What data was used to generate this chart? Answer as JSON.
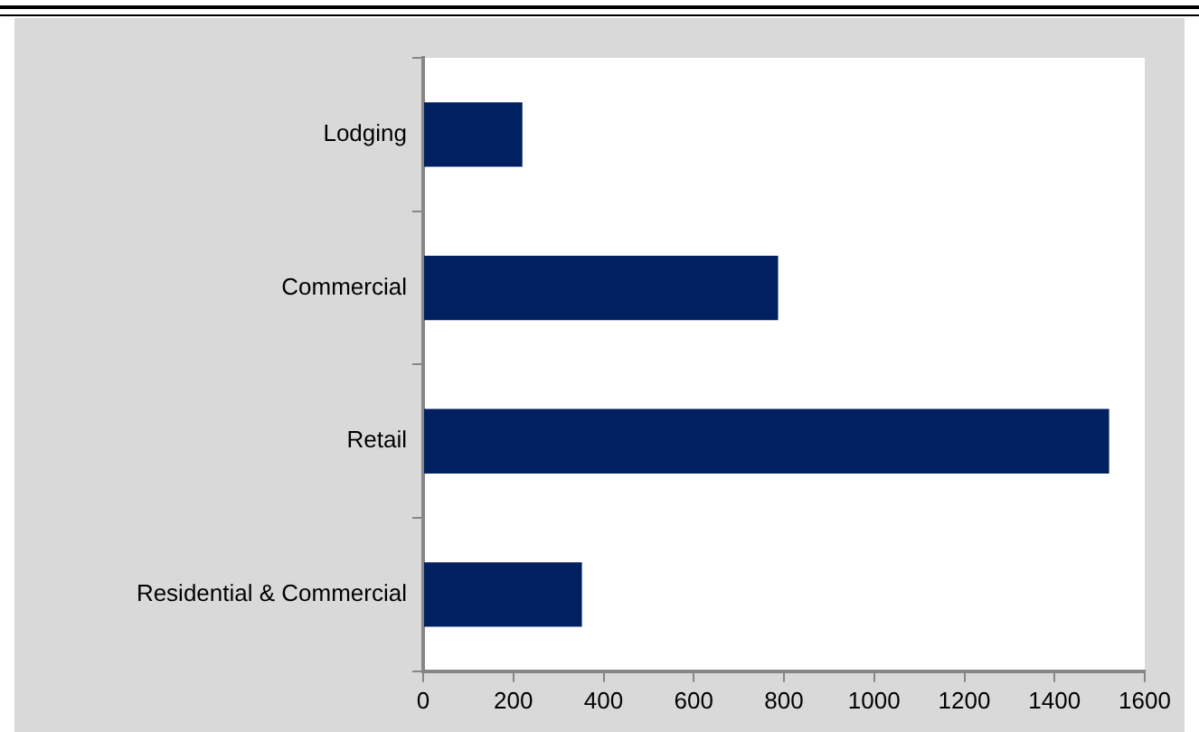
{
  "chart_data": {
    "type": "bar",
    "orientation": "horizontal",
    "categories": [
      "Lodging",
      "Commercial",
      "Retail",
      "Residential & Commercial"
    ],
    "values": [
      220,
      787,
      1521,
      352
    ],
    "color": "#002060",
    "xlim": [
      0,
      1600
    ],
    "xticks": [
      0,
      200,
      400,
      600,
      800,
      1000,
      1200,
      1400,
      1600
    ],
    "grid": false,
    "legend": false
  }
}
